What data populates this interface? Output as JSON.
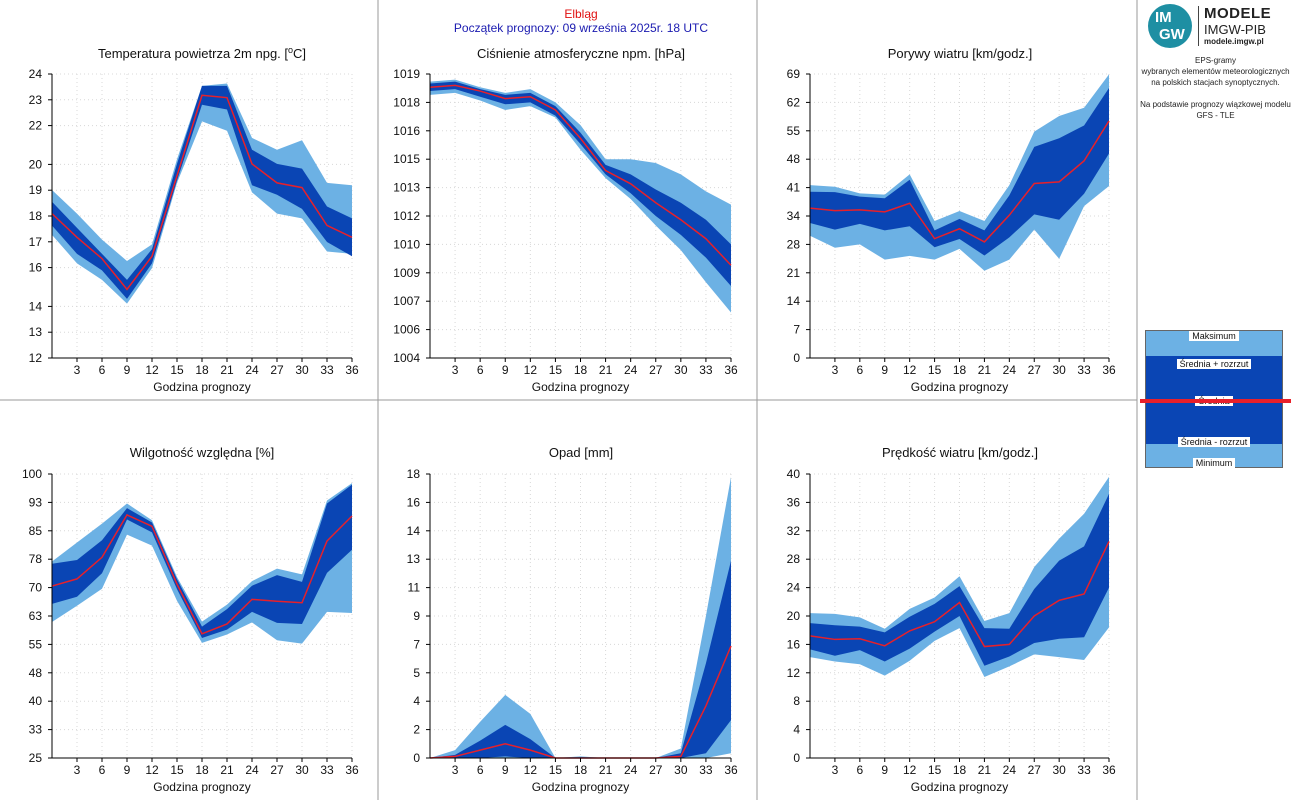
{
  "header": {
    "station": "Elbląg",
    "forecast_start": "Początek prognozy: 09 września 2025r. 18 UTC"
  },
  "brand": {
    "logo_im": "IM",
    "logo_gw": "GW",
    "title": "MODELE",
    "subtitle": "IMGW-PIB",
    "url": "modele.imgw.pl"
  },
  "description": {
    "lines": [
      "EPS-gramy",
      "wybranych elementów meteorologicznych",
      "na polskich stacjach  synoptycznych.",
      "",
      "Na podstawie prognozy wiązkowej modelu",
      "GFS - TLE"
    ]
  },
  "legend": {
    "max": "Maksimum",
    "mean_plus": "Średnia + rozrzut",
    "mean": "Średnia",
    "mean_minus": "Średnia - rozrzut",
    "min": "Minimum"
  },
  "colors": {
    "light_band": "#6cb1e4",
    "dark_band": "#0a45b4",
    "mean_line": "#e8202a",
    "header_red": "#e01010",
    "header_blue": "#1a1ab0"
  },
  "chart_data": [
    {
      "type": "area",
      "title": "Temperatura powietrza 2m npg. [°C]",
      "xlabel": "Godzina prognozy",
      "x": [
        0,
        3,
        6,
        9,
        12,
        15,
        18,
        21,
        24,
        27,
        30,
        33,
        36
      ],
      "xticks": [
        3,
        6,
        9,
        12,
        15,
        18,
        21,
        24,
        27,
        30,
        33,
        36
      ],
      "ylim": [
        12,
        24
      ],
      "yticks": [
        "12",
        "13",
        "14",
        "16",
        "17",
        "18",
        "19",
        "20",
        "22",
        "23",
        "24"
      ],
      "ytick_values": [
        12,
        13.09,
        14.18,
        15.82,
        16.91,
        18,
        19.09,
        20.18,
        21.82,
        22.91,
        24
      ],
      "series": [
        {
          "name": "Maksimum",
          "values": [
            19.1,
            18.1,
            17.0,
            16.1,
            16.8,
            20.4,
            23.5,
            23.6,
            21.3,
            20.8,
            21.2,
            19.4,
            19.3
          ]
        },
        {
          "name": "Średnia + rozrzut",
          "values": [
            18.6,
            17.5,
            16.4,
            15.3,
            16.6,
            20.2,
            23.5,
            23.5,
            20.8,
            20.2,
            20.0,
            18.4,
            17.9
          ]
        },
        {
          "name": "Średnia",
          "values": [
            18.1,
            17.1,
            16.2,
            14.9,
            16.3,
            19.7,
            23.1,
            23.0,
            20.2,
            19.4,
            19.2,
            17.6,
            17.1
          ]
        },
        {
          "name": "Średnia - rozrzut",
          "values": [
            17.6,
            16.4,
            15.7,
            14.5,
            16.0,
            19.5,
            22.7,
            22.5,
            19.3,
            18.9,
            18.3,
            16.9,
            16.3
          ]
        },
        {
          "name": "Minimum",
          "values": [
            17.2,
            16.0,
            15.3,
            14.3,
            15.8,
            19.4,
            22.0,
            21.6,
            19.0,
            18.1,
            17.9,
            16.5,
            16.4
          ]
        }
      ]
    },
    {
      "type": "area",
      "title": "Ciśnienie atmosferyczne npm. [hPa]",
      "xlabel": "Godzina prognozy",
      "x": [
        0,
        3,
        6,
        9,
        12,
        15,
        18,
        21,
        24,
        27,
        30,
        33,
        36
      ],
      "xticks": [
        3,
        6,
        9,
        12,
        15,
        18,
        21,
        24,
        27,
        30,
        33,
        36
      ],
      "ylim": [
        1004,
        1019
      ],
      "yticks": [
        "1004",
        "1006",
        "1007",
        "1009",
        "1010",
        "1012",
        "1013",
        "1015",
        "1016",
        "1018",
        "1019"
      ],
      "ytick_values": [
        1004,
        1005.5,
        1007,
        1008.5,
        1010,
        1011.5,
        1013,
        1014.5,
        1016,
        1017.5,
        1019
      ],
      "series": [
        {
          "name": "Maksimum",
          "values": [
            1018.6,
            1018.7,
            1018.3,
            1018.0,
            1018.2,
            1017.5,
            1016.3,
            1014.5,
            1014.5,
            1014.3,
            1013.7,
            1012.8,
            1012.1
          ]
        },
        {
          "name": "Średnia + rozrzut",
          "values": [
            1018.5,
            1018.6,
            1018.2,
            1017.9,
            1018.0,
            1017.3,
            1015.9,
            1014.2,
            1013.7,
            1012.9,
            1012.2,
            1011.3,
            1010.0
          ]
        },
        {
          "name": "Średnia",
          "values": [
            1018.3,
            1018.4,
            1018.1,
            1017.7,
            1017.8,
            1017.1,
            1015.6,
            1013.9,
            1013.2,
            1012.2,
            1011.3,
            1010.3,
            1008.9
          ]
        },
        {
          "name": "Średnia - rozrzut",
          "values": [
            1018.1,
            1018.2,
            1017.8,
            1017.4,
            1017.5,
            1016.8,
            1015.3,
            1013.7,
            1012.7,
            1011.5,
            1010.5,
            1009.3,
            1007.8
          ]
        },
        {
          "name": "Minimum",
          "values": [
            1017.9,
            1018.0,
            1017.6,
            1017.1,
            1017.3,
            1016.7,
            1015.0,
            1013.5,
            1012.4,
            1011.0,
            1009.7,
            1008.0,
            1006.4
          ]
        }
      ]
    },
    {
      "type": "area",
      "title": "Porywy wiatru [km/godz.]",
      "xlabel": "Godzina prognozy",
      "x": [
        0,
        3,
        6,
        9,
        12,
        15,
        18,
        21,
        24,
        27,
        30,
        33,
        36
      ],
      "xticks": [
        3,
        6,
        9,
        12,
        15,
        18,
        21,
        24,
        27,
        30,
        33,
        36
      ],
      "ylim": [
        0,
        69
      ],
      "yticks": [
        "0",
        "7",
        "14",
        "21",
        "28",
        "34",
        "41",
        "48",
        "55",
        "62",
        "69"
      ],
      "ytick_values": [
        0,
        6.9,
        13.8,
        20.7,
        27.6,
        34.5,
        41.4,
        48.3,
        55.2,
        62.1,
        69
      ],
      "series": [
        {
          "name": "Maksimum",
          "values": [
            42.0,
            41.6,
            40.0,
            39.7,
            44.6,
            33.3,
            35.7,
            33.3,
            42.0,
            55.0,
            58.8,
            60.8,
            68.9
          ]
        },
        {
          "name": "Średnia + rozrzut",
          "values": [
            40.4,
            40.3,
            39.2,
            38.8,
            43.3,
            31.0,
            33.8,
            31.0,
            39.5,
            51.3,
            53.4,
            56.5,
            65.6
          ]
        },
        {
          "name": "Średnia",
          "values": [
            36.4,
            35.8,
            36.0,
            35.5,
            37.6,
            29.0,
            31.4,
            28.2,
            34.7,
            42.4,
            42.8,
            47.9,
            57.6
          ]
        },
        {
          "name": "Średnia - rozrzut",
          "values": [
            32.8,
            31.2,
            32.6,
            31.0,
            32.0,
            26.9,
            28.9,
            24.9,
            29.3,
            34.9,
            33.6,
            39.9,
            49.7
          ]
        },
        {
          "name": "Minimum",
          "values": [
            29.7,
            26.8,
            27.6,
            23.9,
            24.8,
            23.9,
            26.5,
            21.2,
            23.9,
            31.2,
            24.1,
            36.9,
            41.8
          ]
        }
      ]
    },
    {
      "type": "area",
      "title": "Wilgotność względna [%]",
      "xlabel": "Godzina prognozy",
      "x": [
        0,
        3,
        6,
        9,
        12,
        15,
        18,
        21,
        24,
        27,
        30,
        33,
        36
      ],
      "xticks": [
        3,
        6,
        9,
        12,
        15,
        18,
        21,
        24,
        27,
        30,
        33,
        36
      ],
      "ylim": [
        25,
        100
      ],
      "yticks": [
        "25",
        "33",
        "40",
        "48",
        "55",
        "63",
        "70",
        "78",
        "85",
        "93",
        "100"
      ],
      "ytick_values": [
        25,
        32.5,
        40,
        47.5,
        55,
        62.5,
        70,
        77.5,
        85,
        92.5,
        100
      ],
      "series": [
        {
          "name": "Maksimum",
          "values": [
            76.9,
            81.9,
            86.9,
            92.2,
            87.8,
            72.8,
            61.0,
            65.5,
            71.7,
            75.0,
            73.5,
            93.0,
            97.6
          ]
        },
        {
          "name": "Średnia + rozrzut",
          "values": [
            76.3,
            77.3,
            82.5,
            91.0,
            87.2,
            72.2,
            59.7,
            64.3,
            70.5,
            73.3,
            71.5,
            92.2,
            97.2
          ]
        },
        {
          "name": "Średnia",
          "values": [
            70.4,
            72.3,
            78.0,
            89.2,
            86.2,
            70.9,
            57.8,
            60.4,
            66.9,
            66.4,
            66.0,
            82.3,
            88.9
          ]
        },
        {
          "name": "Średnia - rozrzut",
          "values": [
            65.7,
            67.6,
            73.8,
            88.0,
            84.6,
            69.6,
            56.7,
            58.9,
            63.6,
            60.7,
            60.4,
            73.9,
            80.0
          ]
        },
        {
          "name": "Minimum",
          "values": [
            60.9,
            65.2,
            69.7,
            84.0,
            81.1,
            66.5,
            55.4,
            57.6,
            60.8,
            56.1,
            55.2,
            63.6,
            63.3
          ]
        }
      ]
    },
    {
      "type": "area",
      "title": "Opad [mm]",
      "xlabel": "Godzina prognozy",
      "x": [
        0,
        3,
        6,
        9,
        12,
        15,
        18,
        21,
        24,
        27,
        30,
        33,
        36
      ],
      "xticks": [
        3,
        6,
        9,
        12,
        15,
        18,
        21,
        24,
        27,
        30,
        33,
        36
      ],
      "ylim": [
        0,
        18
      ],
      "yticks": [
        "0",
        "2",
        "4",
        "5",
        "7",
        "9",
        "11",
        "13",
        "14",
        "16",
        "18"
      ],
      "ytick_values": [
        0,
        1.8,
        3.6,
        5.4,
        7.2,
        9,
        10.8,
        12.6,
        14.4,
        16.2,
        18
      ],
      "series": [
        {
          "name": "Maksimum",
          "values": [
            0,
            0.5,
            2.3,
            4.0,
            2.8,
            0,
            0.1,
            0,
            0,
            0,
            0.6,
            9.0,
            17.8
          ]
        },
        {
          "name": "Średnia + rozrzut",
          "values": [
            0,
            0.2,
            1.1,
            2.1,
            1.2,
            0,
            0.05,
            0,
            0,
            0,
            0.3,
            6.0,
            12.5
          ]
        },
        {
          "name": "Średnia",
          "values": [
            0,
            0.1,
            0.5,
            0.9,
            0.5,
            0,
            0,
            0,
            0,
            0,
            0.1,
            3.3,
            7.1
          ]
        },
        {
          "name": "Średnia - rozrzut",
          "values": [
            0,
            0,
            0,
            0.1,
            0,
            0,
            0,
            0,
            0,
            0,
            0,
            0.3,
            2.4
          ]
        },
        {
          "name": "Minimum",
          "values": [
            0,
            0,
            0,
            0,
            0,
            0,
            0,
            0,
            0,
            0,
            0,
            0,
            0.3
          ]
        }
      ]
    },
    {
      "type": "area",
      "title": "Prędkość wiatru [km/godz.]",
      "xlabel": "Godzina prognozy",
      "x": [
        0,
        3,
        6,
        9,
        12,
        15,
        18,
        21,
        24,
        27,
        30,
        33,
        36
      ],
      "xticks": [
        3,
        6,
        9,
        12,
        15,
        18,
        21,
        24,
        27,
        30,
        33,
        36
      ],
      "ylim": [
        0,
        40
      ],
      "yticks": [
        "0",
        "4",
        "8",
        "12",
        "16",
        "20",
        "24",
        "28",
        "32",
        "36",
        "40"
      ],
      "ytick_values": [
        0,
        4,
        8,
        12,
        16,
        20,
        24,
        28,
        32,
        36,
        40
      ],
      "series": [
        {
          "name": "Maksimum",
          "values": [
            20.4,
            20.3,
            19.8,
            18.2,
            21.0,
            22.6,
            25.6,
            19.3,
            20.4,
            26.9,
            30.9,
            34.4,
            39.6
          ]
        },
        {
          "name": "Średnia + rozrzut",
          "values": [
            19.0,
            18.7,
            18.5,
            17.7,
            19.9,
            21.7,
            24.2,
            18.3,
            18.2,
            23.8,
            27.8,
            29.8,
            37.2
          ]
        },
        {
          "name": "Średnia",
          "values": [
            17.2,
            16.7,
            16.8,
            15.8,
            17.9,
            19.2,
            21.9,
            15.7,
            16.0,
            20.0,
            22.2,
            23.1,
            30.5
          ]
        },
        {
          "name": "Średnia - rozrzut",
          "values": [
            15.3,
            14.4,
            15.2,
            13.6,
            15.4,
            17.8,
            20.0,
            13.0,
            14.3,
            16.2,
            16.8,
            17.0,
            24.0
          ]
        },
        {
          "name": "Minimum",
          "values": [
            14.2,
            13.6,
            13.2,
            11.6,
            13.7,
            16.5,
            18.3,
            11.4,
            12.9,
            14.6,
            14.2,
            13.8,
            18.4
          ]
        }
      ]
    }
  ]
}
